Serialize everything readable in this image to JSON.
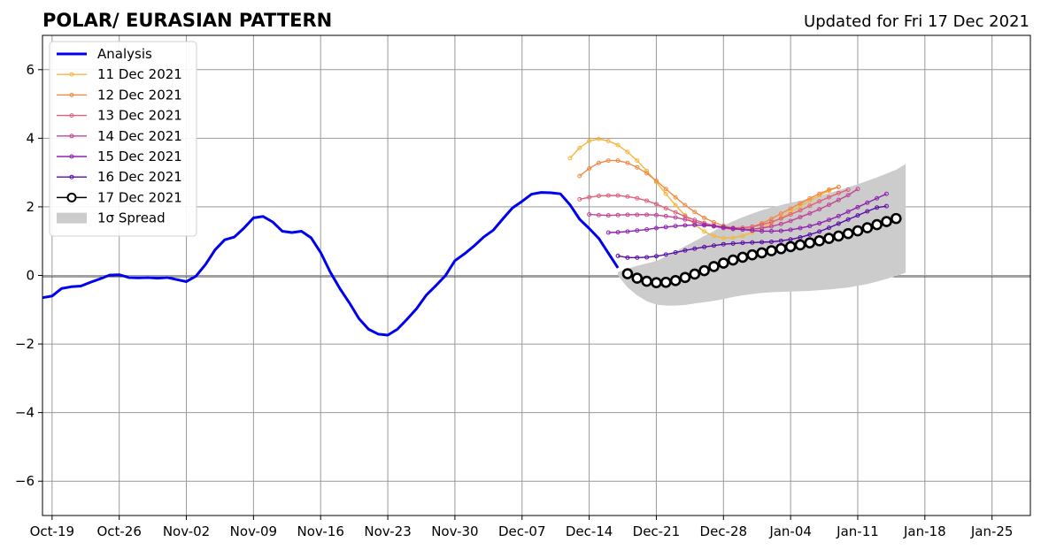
{
  "chart_data": {
    "type": "line",
    "title": "POLAR/ EURASIAN  PATTERN",
    "updated": "Updated for Fri 17 Dec 2021",
    "x_ticks": [
      {
        "label": "Oct-19",
        "x": "2021-10-19"
      },
      {
        "label": "Oct-26",
        "x": "2021-10-26"
      },
      {
        "label": "Nov-02",
        "x": "2021-11-02"
      },
      {
        "label": "Nov-09",
        "x": "2021-11-09"
      },
      {
        "label": "Nov-16",
        "x": "2021-11-16"
      },
      {
        "label": "Nov-23",
        "x": "2021-11-23"
      },
      {
        "label": "Nov-30",
        "x": "2021-11-30"
      },
      {
        "label": "Dec-07",
        "x": "2021-12-07"
      },
      {
        "label": "Dec-14",
        "x": "2021-12-14"
      },
      {
        "label": "Dec-21",
        "x": "2021-12-21"
      },
      {
        "label": "Dec-28",
        "x": "2021-12-28"
      },
      {
        "label": "Jan-04",
        "x": "2022-01-04"
      },
      {
        "label": "Jan-11",
        "x": "2022-01-11"
      },
      {
        "label": "Jan-18",
        "x": "2022-01-18"
      },
      {
        "label": "Jan-25",
        "x": "2022-01-25"
      }
    ],
    "y_ticks": [
      {
        "label": "−6",
        "value": -6
      },
      {
        "label": "−4",
        "value": -4
      },
      {
        "label": "−2",
        "value": -2
      },
      {
        "label": "0",
        "value": 0
      },
      {
        "label": "2",
        "value": 2
      },
      {
        "label": "4",
        "value": 4
      },
      {
        "label": "6",
        "value": 6
      }
    ],
    "xlim": [
      "2021-10-18",
      "2022-01-29"
    ],
    "ylim": [
      -7,
      7
    ],
    "grid": true,
    "legend_position": "upper-left",
    "analysis": {
      "name": "Analysis",
      "color": "#0000ee",
      "x_start": "2021-10-18",
      "y": [
        -0.65,
        -0.6,
        -0.38,
        -0.33,
        -0.31,
        -0.2,
        -0.1,
        0.01,
        0.02,
        -0.06,
        -0.07,
        -0.06,
        -0.08,
        -0.06,
        -0.12,
        -0.18,
        -0.02,
        0.32,
        0.75,
        1.04,
        1.12,
        1.38,
        1.68,
        1.72,
        1.56,
        1.29,
        1.25,
        1.29,
        1.1,
        0.67,
        0.1,
        -0.38,
        -0.8,
        -1.26,
        -1.57,
        -1.71,
        -1.74,
        -1.57,
        -1.28,
        -0.97,
        -0.58,
        -0.3,
        -0.01,
        0.43,
        0.63,
        0.86,
        1.12,
        1.32,
        1.65,
        1.97,
        2.16,
        2.37,
        2.42,
        2.41,
        2.38,
        2.06,
        1.64,
        1.37,
        1.08,
        0.65,
        0.22
      ]
    },
    "forecasts": [
      {
        "name": "11 Dec 2021",
        "color": "#f5b73b",
        "x_start": "2021-12-12",
        "y": [
          3.42,
          3.72,
          3.92,
          3.98,
          3.92,
          3.8,
          3.6,
          3.35,
          3.05,
          2.72,
          2.38,
          2.05,
          1.75,
          1.48,
          1.28,
          1.15,
          1.09,
          1.1,
          1.15,
          1.25,
          1.38,
          1.52,
          1.68,
          1.85,
          2.02,
          2.18,
          2.33,
          2.47,
          2.58
        ]
      },
      {
        "name": "12 Dec 2021",
        "color": "#f08a45",
        "x_start": "2021-12-13",
        "y": [
          2.9,
          3.12,
          3.28,
          3.35,
          3.35,
          3.28,
          3.15,
          2.98,
          2.76,
          2.52,
          2.28,
          2.05,
          1.85,
          1.68,
          1.55,
          1.45,
          1.38,
          1.37,
          1.42,
          1.52,
          1.65,
          1.8,
          1.95,
          2.1,
          2.25,
          2.38,
          2.5,
          2.58
        ]
      },
      {
        "name": "13 Dec 2021",
        "color": "#e0607a",
        "x_start": "2021-12-13",
        "y": [
          2.22,
          2.28,
          2.32,
          2.33,
          2.33,
          2.3,
          2.25,
          2.18,
          2.08,
          1.96,
          1.84,
          1.72,
          1.62,
          1.53,
          1.46,
          1.41,
          1.39,
          1.39,
          1.42,
          1.48,
          1.56,
          1.66,
          1.78,
          1.9,
          2.03,
          2.16,
          2.28,
          2.4,
          2.5
        ]
      },
      {
        "name": "14 Dec 2021",
        "color": "#c0459a",
        "x_start": "2021-12-14",
        "y": [
          1.78,
          1.76,
          1.75,
          1.76,
          1.77,
          1.77,
          1.77,
          1.76,
          1.73,
          1.69,
          1.63,
          1.56,
          1.49,
          1.43,
          1.38,
          1.35,
          1.34,
          1.35,
          1.38,
          1.43,
          1.5,
          1.59,
          1.7,
          1.81,
          1.93,
          2.06,
          2.2,
          2.34,
          2.52
        ]
      },
      {
        "name": "15 Dec 2021",
        "color": "#8f22b0",
        "x_start": "2021-12-16",
        "y": [
          1.25,
          1.26,
          1.28,
          1.31,
          1.34,
          1.38,
          1.41,
          1.44,
          1.46,
          1.47,
          1.46,
          1.44,
          1.41,
          1.37,
          1.34,
          1.31,
          1.29,
          1.29,
          1.3,
          1.33,
          1.38,
          1.44,
          1.52,
          1.62,
          1.73,
          1.86,
          1.99,
          2.12,
          2.25,
          2.38
        ]
      },
      {
        "name": "16 Dec 2021",
        "color": "#5a0ba6",
        "x_start": "2021-12-17",
        "y": [
          0.57,
          0.52,
          0.52,
          0.53,
          0.56,
          0.61,
          0.67,
          0.73,
          0.78,
          0.83,
          0.87,
          0.91,
          0.93,
          0.95,
          0.96,
          0.97,
          0.98,
          1.01,
          1.05,
          1.11,
          1.19,
          1.28,
          1.39,
          1.51,
          1.63,
          1.75,
          1.87,
          1.98,
          2.02
        ]
      }
    ],
    "latest": {
      "name": "17 Dec 2021",
      "color": "#000000",
      "x_start": "2021-12-18",
      "y": [
        0.05,
        -0.08,
        -0.17,
        -0.21,
        -0.2,
        -0.15,
        -0.06,
        0.04,
        0.14,
        0.26,
        0.36,
        0.45,
        0.53,
        0.6,
        0.66,
        0.72,
        0.78,
        0.84,
        0.89,
        0.95,
        1.01,
        1.08,
        1.15,
        1.22,
        1.3,
        1.39,
        1.48,
        1.57,
        1.66
      ]
    },
    "spread": {
      "name": "1σ Spread",
      "color": "#cccccc",
      "x_start": "2021-12-17",
      "upper": [
        0.1,
        0.2,
        0.28,
        0.35,
        0.42,
        0.55,
        0.7,
        0.85,
        1.0,
        1.15,
        1.3,
        1.45,
        1.58,
        1.7,
        1.8,
        1.9,
        1.98,
        2.05,
        2.12,
        2.18,
        2.25,
        2.32,
        2.4,
        2.48,
        2.57,
        2.66,
        2.76,
        2.86,
        2.97,
        3.08,
        3.25
      ],
      "lower": [
        0.0,
        -0.35,
        -0.58,
        -0.75,
        -0.85,
        -0.88,
        -0.88,
        -0.86,
        -0.82,
        -0.78,
        -0.74,
        -0.69,
        -0.63,
        -0.58,
        -0.54,
        -0.51,
        -0.49,
        -0.48,
        -0.47,
        -0.46,
        -0.45,
        -0.43,
        -0.41,
        -0.38,
        -0.35,
        -0.3,
        -0.25,
        -0.18,
        -0.1,
        -0.02,
        0.08
      ]
    }
  }
}
